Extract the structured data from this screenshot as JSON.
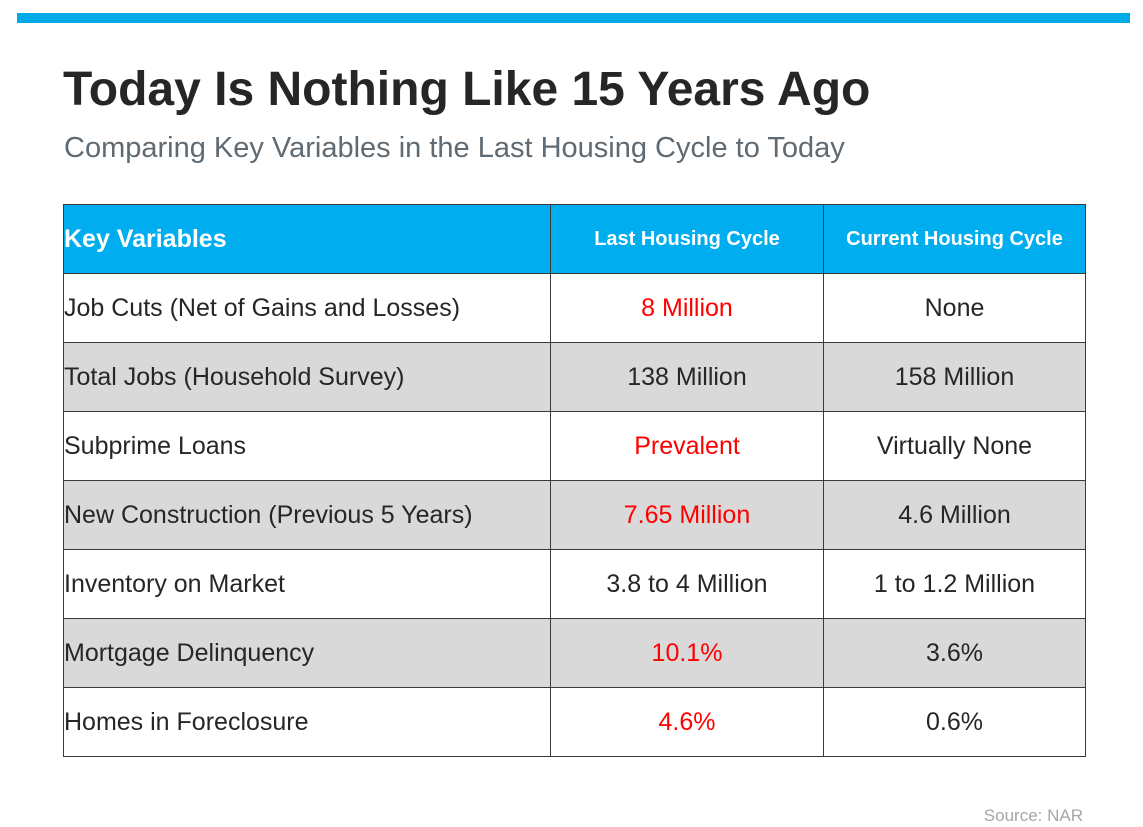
{
  "header": {
    "title": "Today Is Nothing Like 15 Years Ago",
    "subtitle": "Comparing Key Variables in the Last Housing Cycle to Today"
  },
  "colors": {
    "accent": "#00AEEF",
    "highlight": "#FF0000",
    "shaded_row": "#D9D9D9"
  },
  "table": {
    "headers": [
      "Key Variables",
      "Last Housing Cycle",
      "Current Housing Cycle"
    ],
    "rows": [
      {
        "label": "Job Cuts (Net of Gains and Losses)",
        "last": "8 Million",
        "current": "None"
      },
      {
        "label": "Total Jobs (Household Survey)",
        "last": "138 Million",
        "current": "158 Million"
      },
      {
        "label": "Subprime Loans",
        "last": "Prevalent",
        "current": "Virtually None"
      },
      {
        "label": "New Construction (Previous 5 Years)",
        "last": "7.65 Million",
        "current": "4.6 Million"
      },
      {
        "label": "Inventory on Market",
        "last": "3.8 to 4 Million",
        "current": "1 to 1.2 Million"
      },
      {
        "label": "Mortgage Delinquency",
        "last": "10.1%",
        "current": "3.6%"
      },
      {
        "label": "Homes in Foreclosure",
        "last": "4.6%",
        "current": "0.6%"
      }
    ]
  },
  "footer": {
    "source": "Source: NAR"
  }
}
